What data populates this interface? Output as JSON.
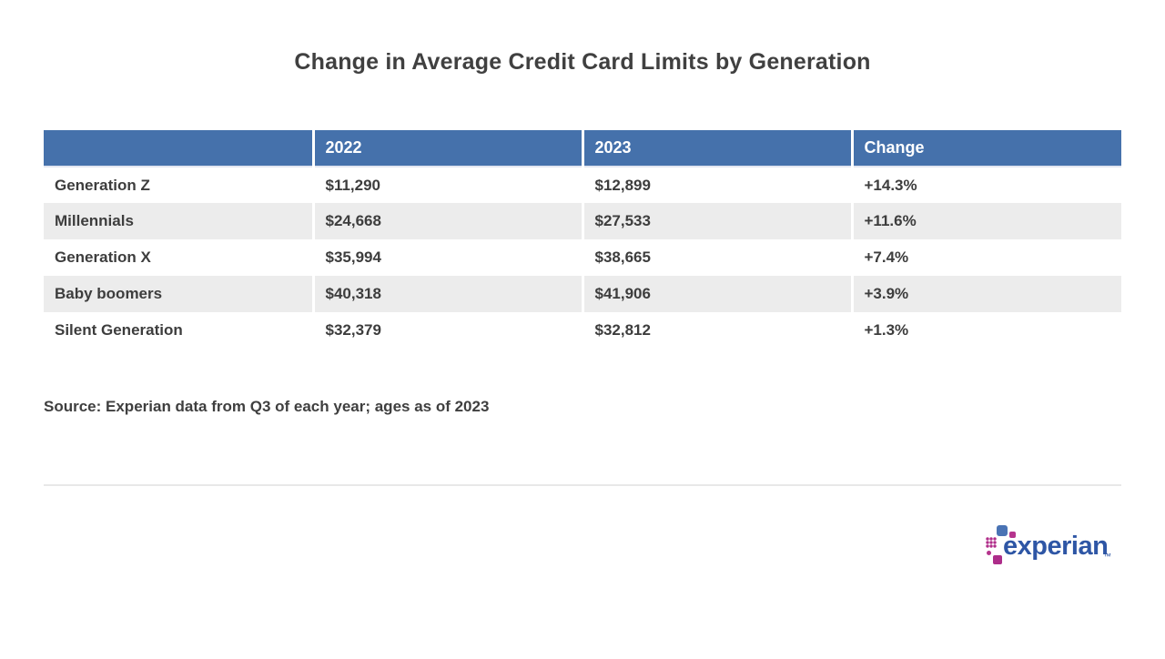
{
  "page": {
    "title": "Change in Average Credit Card Limits by Generation",
    "source_note": "Source: Experian data from Q3 of each year; ages as of 2023"
  },
  "chart_data": {
    "type": "table",
    "title": "Change in Average Credit Card Limits by Generation",
    "columns": [
      "",
      "2022",
      "2023",
      "Change"
    ],
    "rows": [
      [
        "Generation Z",
        "$11,290",
        "$12,899",
        "+14.3%"
      ],
      [
        "Millennials",
        "$24,668",
        "$27,533",
        "+11.6%"
      ],
      [
        "Generation X",
        "$35,994",
        "$38,665",
        "+7.4%"
      ],
      [
        "Baby boomers",
        "$40,318",
        "$41,906",
        "+3.9%"
      ],
      [
        "Silent Generation",
        "$32,379",
        "$32,812",
        "+1.3%"
      ]
    ],
    "striped_row_indexes": [
      1,
      3
    ],
    "source": "Source: Experian data from Q3 of each year; ages as of 2023"
  },
  "logo": {
    "brand": "experian",
    "trademark": "™"
  },
  "colors": {
    "header_bg": "#4571AB",
    "row_stripe": "#ECECEC",
    "body_text": "#3F3F3F",
    "divider": "#E8E8E8",
    "experian_blue": "#2E56A5",
    "experian_magenta": "#B02E8A",
    "logo_square_blue": "#4A73B4"
  }
}
